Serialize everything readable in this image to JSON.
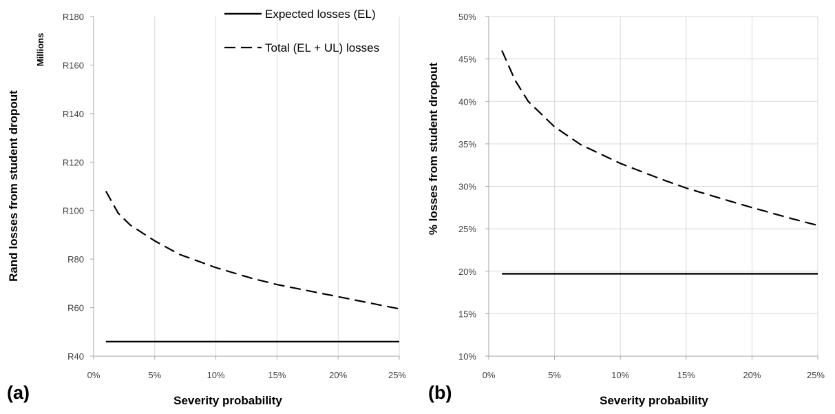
{
  "chart_data": [
    {
      "type": "line",
      "panel_label": "(a)",
      "xlabel": "Severity probability",
      "ylabel": "Rand losses from student dropout",
      "y_unit_label": "Millions",
      "xlim": [
        0,
        0.25
      ],
      "ylim": [
        40,
        180
      ],
      "x_ticks": [
        0,
        0.05,
        0.1,
        0.15,
        0.2,
        0.25
      ],
      "x_tick_labels": [
        "0%",
        "5%",
        "10%",
        "15%",
        "20%",
        "25%"
      ],
      "y_ticks": [
        40,
        60,
        80,
        100,
        120,
        140,
        160,
        180
      ],
      "y_tick_labels": [
        "R40",
        "R60",
        "R80",
        "R100",
        "R120",
        "R140",
        "R160",
        "R180"
      ],
      "grid": "vertical",
      "legend_position": "top-right",
      "series": [
        {
          "name": "Expected losses (EL)",
          "style": "solid",
          "x": [
            0.01,
            0.25
          ],
          "values": [
            46,
            46
          ]
        },
        {
          "name": "Total (EL + UL) losses",
          "style": "dashed",
          "x": [
            0.01,
            0.02,
            0.03,
            0.05,
            0.07,
            0.1,
            0.13,
            0.15,
            0.18,
            0.2,
            0.23,
            0.25
          ],
          "values": [
            108,
            99,
            94,
            87.5,
            82,
            76.5,
            72,
            69.5,
            66.5,
            64.5,
            61.5,
            59.5
          ]
        }
      ]
    },
    {
      "type": "line",
      "panel_label": "(b)",
      "xlabel": "Severity probability",
      "ylabel": "% losses from student dropout",
      "xlim": [
        0,
        0.25
      ],
      "ylim": [
        0.1,
        0.5
      ],
      "x_ticks": [
        0,
        0.05,
        0.1,
        0.15,
        0.2,
        0.25
      ],
      "x_tick_labels": [
        "0%",
        "5%",
        "10%",
        "15%",
        "20%",
        "25%"
      ],
      "y_ticks": [
        0.1,
        0.15,
        0.2,
        0.25,
        0.3,
        0.35,
        0.4,
        0.45,
        0.5
      ],
      "y_tick_labels": [
        "10%",
        "15%",
        "20%",
        "25%",
        "30%",
        "35%",
        "40%",
        "45%",
        "50%"
      ],
      "grid": "both",
      "series": [
        {
          "name": "Expected losses (EL)",
          "style": "solid",
          "x": [
            0.01,
            0.25
          ],
          "values": [
            0.197,
            0.197
          ]
        },
        {
          "name": "Total (EL + UL) losses",
          "style": "dashed",
          "x": [
            0.01,
            0.02,
            0.03,
            0.05,
            0.07,
            0.1,
            0.13,
            0.15,
            0.18,
            0.2,
            0.23,
            0.25
          ],
          "values": [
            0.46,
            0.425,
            0.4,
            0.37,
            0.349,
            0.327,
            0.309,
            0.298,
            0.284,
            0.275,
            0.262,
            0.254
          ]
        }
      ]
    }
  ]
}
